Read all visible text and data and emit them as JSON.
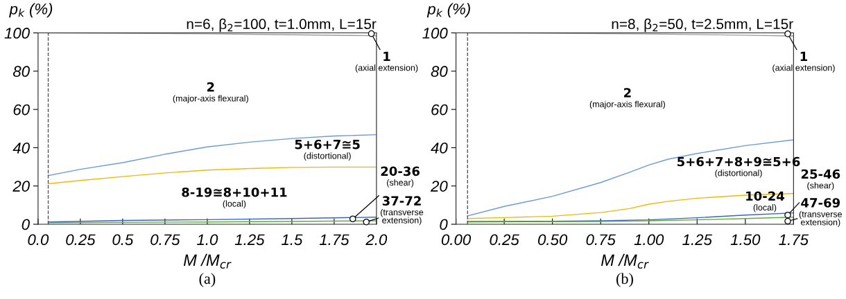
{
  "chart_data": [
    {
      "type": "line",
      "title": "n=6, β$_{2}$=100, t=1.0mm, L=15r",
      "xlabel": "M /M$_{cr}$",
      "ylabel": "p$_{k}$ (%)",
      "xlim": [
        0,
        2
      ],
      "xticks": [
        {
          "value": 0,
          "label": "0.0"
        },
        0.25,
        0.5,
        0.75,
        {
          "value": 1,
          "label": "1.0"
        },
        1.25,
        1.5,
        1.75,
        {
          "value": 2,
          "label": "2.0"
        }
      ],
      "ylim": [
        0,
        100
      ],
      "yticks": [
        0,
        20,
        40,
        60,
        80,
        100
      ],
      "grid": false,
      "legend": false,
      "series": [
        {
          "color": "#9a9a9a",
          "x": [
            0.06,
            0.5,
            1.0,
            1.5,
            2.0
          ],
          "values": [
            100,
            99.8,
            99.5,
            99,
            98.5
          ]
        },
        {
          "color": "#6a9ad6",
          "x": [
            0.06,
            0.25,
            0.5,
            0.75,
            1.0,
            1.25,
            1.5,
            1.75,
            2.0
          ],
          "values": [
            25.4,
            28.7,
            32.2,
            36.6,
            40.4,
            42.9,
            44.8,
            46.1,
            46.8
          ]
        },
        {
          "color": "#f2b705",
          "x": [
            0.06,
            0.25,
            0.5,
            0.75,
            1.0,
            1.25,
            1.5,
            1.75,
            2.0
          ],
          "values": [
            21.2,
            22.9,
            24.9,
            26.8,
            28.3,
            29.1,
            29.7,
            29.9,
            29.9
          ]
        },
        {
          "color": "#3b62c4",
          "x": [
            0.06,
            0.5,
            1.0,
            1.5,
            2.0
          ],
          "values": [
            1.2,
            2.0,
            2.4,
            3.0,
            3.7
          ]
        },
        {
          "color": "#5fae3c",
          "x": [
            0.06,
            1.0,
            2.0
          ],
          "values": [
            0.8,
            1.2,
            1.8
          ]
        }
      ],
      "ref_lines": [
        {
          "axis": "x",
          "value": 0.06,
          "color": "#555555",
          "line_style": "dashed"
        }
      ],
      "annotations": [
        {
          "text": "1\n(axial extension)",
          "x": 1.97,
          "y": 99.6
        },
        "2\n(major-axis flexural)",
        "5+6+7≅5\n(distortional)",
        "8-19≅8+10+11\n(local)",
        {
          "text": "20-36\n(shear)",
          "x": 1.86,
          "y": 2.8
        },
        {
          "text": "37-72\n(transverse\nextension)",
          "x": 1.94,
          "y": 1.2
        },
        "(a)"
      ]
    },
    {
      "type": "line",
      "title": "n=8, β$_{2}$=50, t=2.5mm, L=15r",
      "xlabel": "M /M$_{cr}$",
      "ylabel": "p$_{k}$ (%)",
      "xlim": [
        0,
        1.75
      ],
      "xticks": [
        {
          "value": 0,
          "label": "0.00"
        },
        0.25,
        {
          "value": 0.5,
          "label": "0.50"
        },
        0.75,
        {
          "value": 1,
          "label": "1.00"
        },
        1.25,
        {
          "value": 1.5,
          "label": "1.50"
        },
        1.75
      ],
      "ylim": [
        0,
        100
      ],
      "yticks": [
        0,
        20,
        40,
        60,
        80,
        100
      ],
      "grid": false,
      "legend": false,
      "series": [
        {
          "color": "#9a9a9a",
          "x": [
            0.06,
            0.5,
            1.0,
            1.5,
            1.75
          ],
          "values": [
            100,
            99.8,
            99.4,
            98.8,
            98.4
          ]
        },
        {
          "color": "#6a9ad6",
          "x": [
            0.06,
            0.25,
            0.5,
            0.75,
            0.9,
            1.0,
            1.1,
            1.25,
            1.5,
            1.75
          ],
          "values": [
            4.4,
            9.3,
            14.6,
            21.8,
            27.2,
            31.0,
            34.0,
            37.0,
            41.1,
            44.1
          ]
        },
        {
          "color": "#f2b705",
          "x": [
            0.06,
            0.25,
            0.5,
            0.75,
            0.9,
            1.0,
            1.1,
            1.25,
            1.5,
            1.75
          ],
          "values": [
            3.0,
            3.5,
            4.2,
            6.1,
            8.2,
            10.5,
            12.0,
            13.6,
            15.2,
            16.1
          ]
        },
        {
          "color": "#3b62c4",
          "x": [
            0.06,
            0.5,
            0.75,
            1.0,
            1.25,
            1.5,
            1.75
          ],
          "values": [
            1.5,
            1.6,
            1.8,
            2.3,
            3.4,
            4.8,
            5.9
          ]
        },
        {
          "color": "#5fae3c",
          "x": [
            0.06,
            0.75,
            1.0,
            1.25,
            1.5,
            1.75
          ],
          "values": [
            1.2,
            1.4,
            1.8,
            2.3,
            3.0,
            3.7
          ]
        }
      ],
      "ref_lines": [
        {
          "axis": "x",
          "value": 0.06,
          "color": "#555555",
          "line_style": "dashed"
        }
      ],
      "annotations": [
        {
          "text": "1\n(axial extension)",
          "x": 1.72,
          "y": 99.5
        },
        "2\n(major-axis flexural)",
        "5+6+7+8+9≅5+6\n(distortional)",
        "10-24\n(local)",
        {
          "text": "25-46\n(shear)",
          "x": 1.72,
          "y": 4.8
        },
        {
          "text": "47-69\n(transverse\nextension)",
          "x": 1.72,
          "y": 1.6
        },
        "(b)"
      ]
    }
  ]
}
